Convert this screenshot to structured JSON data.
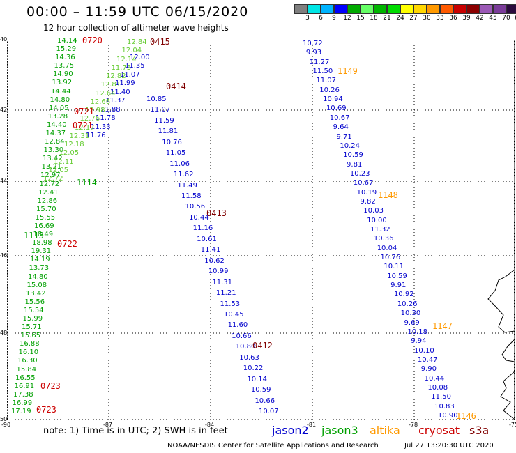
{
  "title": "00:00 – 11:59 UTC 06/15/2020",
  "subtitle": "12 hour collection of altimeter wave heights",
  "colorbar": {
    "colors": [
      "#7f7f7f",
      "#00e6e6",
      "#00b4ff",
      "#0000ff",
      "#00aa00",
      "#66ff66",
      "#00b400",
      "#00dc00",
      "#ffff00",
      "#ffd700",
      "#ff9900",
      "#ff5a00",
      "#c80000",
      "#8b0000",
      "#9b59b6",
      "#7a3c99",
      "#2b0a3d",
      "#000000"
    ],
    "labels": [
      "3",
      "6",
      "9",
      "12",
      "15",
      "18",
      "21",
      "24",
      "27",
      "30",
      "33",
      "36",
      "39",
      "42",
      "45",
      "70",
      "(ft)"
    ]
  },
  "axes": {
    "lat_ticks": [
      "40",
      "42",
      "44",
      "46",
      "48",
      "50"
    ],
    "lon_ticks": [
      "-90",
      "-87",
      "-84",
      "-81",
      "-78",
      "-75"
    ]
  },
  "footer": {
    "note": "note:  1) Time is in UTC;  2) SWH is in feet",
    "legend": [
      {
        "name": "jason2",
        "color": "#0000cc"
      },
      {
        "name": "jason3",
        "color": "#00a000"
      },
      {
        "name": "altika",
        "color": "#ff9900"
      },
      {
        "name": "cryosat",
        "color": "#cc0000"
      },
      {
        "name": "s3a",
        "color": "#800000"
      }
    ],
    "credit": "NOAA/NESDIS Center for Satellite Applications and Research",
    "stamp": "Jul 27 13:20:30 UTC 2020"
  },
  "orbit_labels": [
    {
      "text": "0720",
      "color": "#cc0000"
    },
    {
      "text": "0415",
      "color": "#800000"
    },
    {
      "text": "1149",
      "color": "#ff9900"
    },
    {
      "text": "0414",
      "color": "#800000"
    },
    {
      "text": "0721",
      "color": "#cc0000"
    },
    {
      "text": "0721",
      "color": "#cc0000"
    },
    {
      "text": "1114",
      "color": "#00a000"
    },
    {
      "text": "1148",
      "color": "#ff9900"
    },
    {
      "text": "0413",
      "color": "#800000"
    },
    {
      "text": "1113",
      "color": "#00a000"
    },
    {
      "text": "0722",
      "color": "#cc0000"
    },
    {
      "text": "1147",
      "color": "#ff9900"
    },
    {
      "text": "0412",
      "color": "#800000"
    },
    {
      "text": "0723",
      "color": "#cc0000"
    },
    {
      "text": "0723",
      "color": "#cc0000"
    },
    {
      "text": "1146",
      "color": "#ff9900"
    }
  ],
  "tracks": {
    "jason3_west": {
      "color": "#00a000",
      "values": [
        "14.14",
        "15.29",
        "14.36",
        "13.75",
        "14.90",
        "13.92",
        "14.44",
        "14.80",
        "14.05",
        "13.28",
        "14.40",
        "14.37",
        "12.84",
        "13.30",
        "13.42",
        "13.21",
        "12.97",
        "12.72",
        "12.41",
        "12.86",
        "15.70",
        "15.55",
        "16.69",
        "18.49",
        "18.98",
        "19.31",
        "14.19",
        "13.73",
        "14.80",
        "15.08",
        "13.42",
        "15.56",
        "15.54",
        "15.99",
        "15.71",
        "15.65",
        "16.88",
        "16.10",
        "16.30",
        "15.84",
        "16.55",
        "16.91",
        "17.38",
        "16.99",
        "17.19"
      ]
    },
    "jason2_a": {
      "color": "#0000cc",
      "values": [
        "12.00",
        "11.35",
        "11.07",
        "11.99",
        "11.40",
        "11.37",
        "11.88",
        "11.78",
        "11.33",
        "11.76"
      ]
    },
    "jason3_a": {
      "color": "#66cc33",
      "values": [
        "12.84",
        "12.04",
        "12.14",
        "11.73",
        "12.82",
        "12.81",
        "12.64",
        "12.66",
        "12.98",
        "12.76",
        "12.17",
        "12.31",
        "12.18",
        "12.05",
        "12.11",
        "12.05",
        "12.72"
      ]
    },
    "jason2_b": {
      "color": "#0000cc",
      "values": [
        "10.85",
        "11.07",
        "11.59",
        "11.81",
        "10.76",
        "11.05",
        "11.06",
        "11.62",
        "11.49",
        "11.58",
        "10.56",
        "10.44",
        "11.16",
        "10.61",
        "11.41",
        "10.62",
        "10.99",
        "11.31",
        "11.21",
        "11.53",
        "10.45",
        "11.60",
        "10.66",
        "10.80",
        "10.63",
        "10.22",
        "10.14",
        "10.59",
        "10.66",
        "10.07"
      ]
    },
    "jason2_c": {
      "color": "#0000cc",
      "values": [
        "10.72",
        "9.93",
        "11.27",
        "11.50",
        "11.07",
        "10.26",
        "10.94",
        "10.69",
        "10.67",
        "9.64",
        "9.71",
        "10.24",
        "10.59",
        "9.81",
        "10.23",
        "10.67",
        "10.19",
        "9.82",
        "10.03",
        "10.00",
        "11.32",
        "10.36",
        "10.04",
        "10.76",
        "10.11",
        "10.59",
        "9.91",
        "10.92",
        "10.26",
        "10.30",
        "9.69",
        "10.18",
        "9.94",
        "10.10",
        "10.47",
        "9.90",
        "10.44",
        "10.08",
        "11.50",
        "10.83",
        "10.90"
      ]
    }
  }
}
